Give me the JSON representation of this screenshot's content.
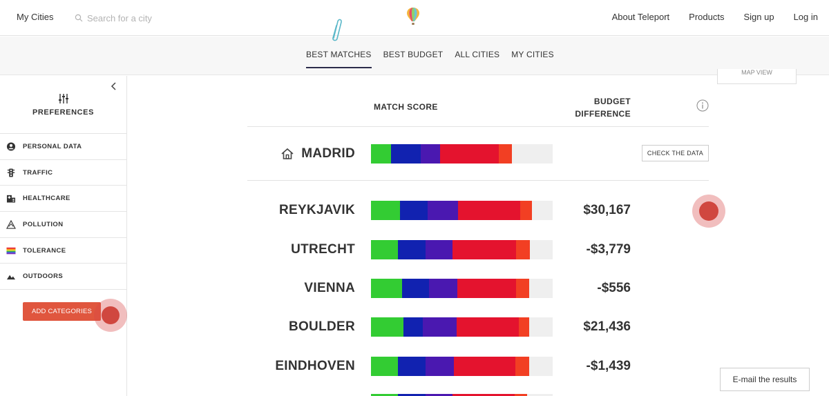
{
  "topnav": {
    "my_cities": "My Cities",
    "search_placeholder": "Search for a city",
    "links": [
      "About Teleport",
      "Products",
      "Sign up",
      "Log in"
    ]
  },
  "tabs": [
    {
      "label": "BEST MATCHES",
      "active": true
    },
    {
      "label": "BEST BUDGET",
      "active": false
    },
    {
      "label": "ALL CITIES",
      "active": false
    },
    {
      "label": "MY CITIES",
      "active": false
    }
  ],
  "sidebar": {
    "title": "PREFERENCES",
    "categories": [
      {
        "label": "PERSONAL DATA",
        "icon": "user-circle-icon"
      },
      {
        "label": "TRAFFIC",
        "icon": "traffic-light-icon"
      },
      {
        "label": "HEALTHCARE",
        "icon": "hospital-icon"
      },
      {
        "label": "POLLUTION",
        "icon": "pollution-triangle-icon"
      },
      {
        "label": "TOLERANCE",
        "icon": "rainbow-flag-icon"
      },
      {
        "label": "OUTDOORS",
        "icon": "mountains-icon"
      }
    ],
    "add_button": "ADD CATEGORIES"
  },
  "main": {
    "map_view_label": "MAP VIEW",
    "header_match": "MATCH SCORE",
    "header_budget_line1": "BUDGET",
    "header_budget_line2": "DIFFERENCE",
    "home_city": {
      "name": "MADRID",
      "check_label": "CHECK THE DATA"
    },
    "cities": [
      {
        "name": "REYKJAVIK",
        "budget": "$30,167"
      },
      {
        "name": "UTRECHT",
        "budget": "-$3,779"
      },
      {
        "name": "VIENNA",
        "budget": "-$556"
      },
      {
        "name": "BOULDER",
        "budget": "$21,436"
      },
      {
        "name": "EINDHOVEN",
        "budget": "-$1,439"
      }
    ],
    "email_button": "E-mail the results"
  },
  "colors": {
    "green": "#33cc33",
    "blue": "#1122b0",
    "purple": "#4a18b0",
    "red": "#e4132e",
    "orange": "#f23f23",
    "empty": "#efefef",
    "accent": "#e0563e"
  },
  "score_segments": {
    "MADRID": [
      0.11,
      0.165,
      0.105,
      0.325,
      0.07
    ],
    "REYKJAVIK": [
      0.16,
      0.15,
      0.17,
      0.34,
      0.065
    ],
    "UTRECHT": [
      0.15,
      0.15,
      0.15,
      0.35,
      0.075
    ],
    "VIENNA": [
      0.17,
      0.15,
      0.155,
      0.325,
      0.07
    ],
    "BOULDER": [
      0.18,
      0.105,
      0.185,
      0.345,
      0.055
    ],
    "EINDHOVEN": [
      0.15,
      0.15,
      0.155,
      0.34,
      0.075
    ]
  }
}
